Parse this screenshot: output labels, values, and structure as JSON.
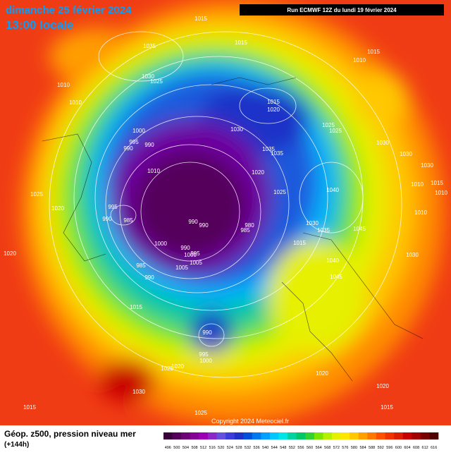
{
  "header": {
    "date": "dimanche 25 février 2024",
    "time": "13:00 locale",
    "run": "Run ECMWF 12Z du lundi 19 février 2024"
  },
  "isobar_labels": [
    1015,
    1035,
    1015,
    1015,
    1010,
    1030,
    1025,
    1010,
    1010,
    1015,
    1020,
    1000,
    995,
    990,
    990,
    1030,
    1025,
    1025,
    1030,
    1035,
    1035,
    1030,
    1030,
    1010,
    1020,
    1040,
    1010,
    1015,
    1010,
    1025,
    995,
    990,
    985,
    1025,
    1020,
    1010,
    990,
    990,
    980,
    985,
    1030,
    1035,
    1045,
    1000,
    990,
    1015,
    1000,
    995,
    1020,
    1005,
    985,
    1005,
    1040,
    1030,
    990,
    1045,
    1015,
    990,
    995,
    1000,
    1020,
    1025,
    1020,
    1030,
    1015,
    1025,
    1015,
    1020
  ],
  "copyright": "Copyright 2024 Meteociel.fr",
  "footer": {
    "title": "Géop. z500, pression niveau mer",
    "lead": "(+144h)"
  },
  "colorbar": {
    "labels": [
      496,
      500,
      504,
      508,
      512,
      516,
      520,
      524,
      528,
      532,
      536,
      540,
      544,
      548,
      552,
      556,
      560,
      564,
      568,
      572,
      576,
      580,
      584,
      588,
      592,
      596,
      600,
      604,
      608,
      612,
      616
    ],
    "colors": [
      "#3a003a",
      "#55005a",
      "#6e0078",
      "#870096",
      "#9c00b4",
      "#8c28c8",
      "#6450dc",
      "#3c3cdc",
      "#1e32c8",
      "#0050dc",
      "#0078f0",
      "#00a0ff",
      "#00c8ff",
      "#00e6e6",
      "#00d2a0",
      "#00c864",
      "#32d232",
      "#78e600",
      "#b4f000",
      "#e6f000",
      "#ffe600",
      "#ffc800",
      "#ffa000",
      "#ff7800",
      "#ff5000",
      "#f03200",
      "#dc1e00",
      "#c80000",
      "#a00000",
      "#780000",
      "#500000"
    ]
  }
}
